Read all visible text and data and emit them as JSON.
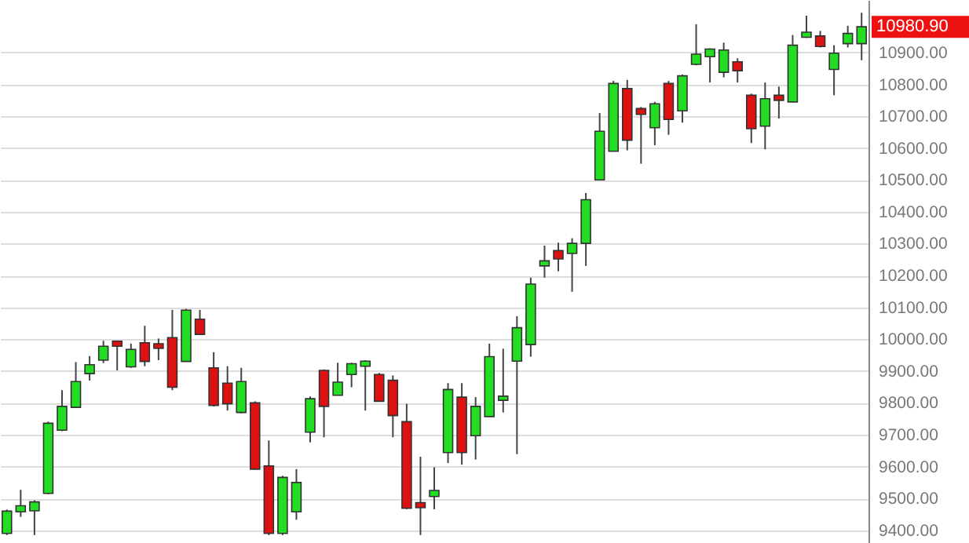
{
  "chart_data": {
    "type": "candlestick",
    "categories": [
      null,
      null,
      null,
      null,
      null,
      null,
      null,
      null,
      null,
      null,
      null,
      null,
      null,
      null,
      null,
      null,
      null,
      null,
      null,
      null,
      null,
      null,
      null,
      null,
      null,
      null,
      null,
      null,
      null,
      null,
      null,
      null,
      null,
      null,
      null,
      null,
      null,
      null,
      null,
      null,
      null,
      null,
      null,
      null,
      null,
      null,
      null,
      null,
      null,
      null,
      null,
      null,
      null,
      null,
      null,
      null,
      null,
      null,
      null,
      null,
      null,
      null,
      null
    ],
    "ohlc": [
      [
        9390,
        9465,
        9385,
        9460
      ],
      [
        9458,
        9527,
        9442,
        9477
      ],
      [
        9461,
        9494,
        9385,
        9489
      ],
      [
        9516,
        9741,
        9513,
        9736
      ],
      [
        9714,
        9840,
        9711,
        9789
      ],
      [
        9786,
        9928,
        9786,
        9867
      ],
      [
        9892,
        9947,
        9870,
        9920
      ],
      [
        9934,
        9995,
        9925,
        9978
      ],
      [
        9994,
        9996,
        9902,
        9978
      ],
      [
        9913,
        9986,
        9910,
        9968
      ],
      [
        9989,
        10042,
        9915,
        9930
      ],
      [
        9986,
        10002,
        9934,
        9971
      ],
      [
        10005,
        10092,
        9840,
        9849
      ],
      [
        9930,
        10095,
        9930,
        10091
      ],
      [
        10063,
        10092,
        10015,
        10015
      ],
      [
        9910,
        9959,
        9789,
        9792
      ],
      [
        9862,
        9915,
        9776,
        9797
      ],
      [
        9770,
        9910,
        9767,
        9867
      ],
      [
        9800,
        9805,
        9590,
        9592
      ],
      [
        9602,
        9682,
        9385,
        9390
      ],
      [
        9390,
        9571,
        9385,
        9566
      ],
      [
        9458,
        9592,
        9433,
        9550
      ],
      [
        9708,
        9820,
        9676,
        9813
      ],
      [
        9902,
        9905,
        9692,
        9789
      ],
      [
        9824,
        9926,
        9824,
        9865
      ],
      [
        9889,
        9926,
        9849,
        9923
      ],
      [
        9915,
        9934,
        9776,
        9931
      ],
      [
        9889,
        9894,
        9805,
        9805
      ],
      [
        9871,
        9886,
        9692,
        9760
      ],
      [
        9741,
        9797,
        9466,
        9469
      ],
      [
        9487,
        9631,
        9385,
        9471
      ],
      [
        9506,
        9598,
        9466,
        9525
      ],
      [
        9644,
        9862,
        9611,
        9842
      ],
      [
        9818,
        9862,
        9606,
        9644
      ],
      [
        9697,
        9818,
        9622,
        9789
      ],
      [
        9757,
        9986,
        9757,
        9945
      ],
      [
        9808,
        9970,
        9770,
        9821
      ],
      [
        9931,
        10072,
        9639,
        10036
      ],
      [
        9983,
        10193,
        9945,
        10173
      ],
      [
        10230,
        10294,
        10193,
        10246
      ],
      [
        10278,
        10303,
        10213,
        10252
      ],
      [
        10269,
        10317,
        10149,
        10301
      ],
      [
        10301,
        10459,
        10230,
        10438
      ],
      [
        10500,
        10710,
        10500,
        10653
      ],
      [
        10590,
        10811,
        10590,
        10803
      ],
      [
        10787,
        10814,
        10593,
        10625
      ],
      [
        10724,
        10729,
        10551,
        10706
      ],
      [
        10664,
        10745,
        10609,
        10739
      ],
      [
        10803,
        10811,
        10642,
        10690
      ],
      [
        10717,
        10831,
        10680,
        10827
      ],
      [
        10863,
        10989,
        10860,
        10895
      ],
      [
        10887,
        10913,
        10806,
        10911
      ],
      [
        10838,
        10931,
        10822,
        10908
      ],
      [
        10871,
        10882,
        10806,
        10843
      ],
      [
        10766,
        10771,
        10616,
        10661
      ],
      [
        10669,
        10806,
        10596,
        10755
      ],
      [
        10766,
        10793,
        10693,
        10750
      ],
      [
        10745,
        10955,
        10745,
        10923
      ],
      [
        10948,
        11016,
        10946,
        10964
      ],
      [
        10952,
        10968,
        10916,
        10919
      ],
      [
        10847,
        10923,
        10766,
        10898
      ],
      [
        10928,
        10984,
        10916,
        10960
      ],
      [
        10928,
        11025,
        10876,
        10980.9
      ]
    ],
    "colors": [
      "#22dd22",
      "#22dd22",
      "#22dd22",
      "#22dd22",
      "#22dd22",
      "#22dd22",
      "#22dd22",
      "#22dd22",
      "#dd1111",
      "#22dd22",
      "#dd1111",
      "#dd1111",
      "#dd1111",
      "#22dd22",
      "#dd1111",
      "#dd1111",
      "#dd1111",
      "#22dd22",
      "#dd1111",
      "#dd1111",
      "#22dd22",
      "#22dd22",
      "#22dd22",
      "#dd1111",
      "#22dd22",
      "#22dd22",
      "#22dd22",
      "#dd1111",
      "#dd1111",
      "#dd1111",
      "#dd1111",
      "#22dd22",
      "#22dd22",
      "#dd1111",
      "#22dd22",
      "#22dd22",
      "#22dd22",
      "#22dd22",
      "#22dd22",
      "#22dd22",
      "#dd1111",
      "#22dd22",
      "#22dd22",
      "#22dd22",
      "#22dd22",
      "#dd1111",
      "#dd1111",
      "#22dd22",
      "#dd1111",
      "#22dd22",
      "#22dd22",
      "#22dd22",
      "#22dd22",
      "#dd1111",
      "#dd1111",
      "#22dd22",
      "#dd1111",
      "#22dd22",
      "#22dd22",
      "#dd1111",
      "#22dd22",
      "#22dd22",
      "#22dd22"
    ],
    "ylim": [
      9360,
      11065
    ],
    "yticks": [
      {
        "value": 9400,
        "label": "9400.00"
      },
      {
        "value": 9500,
        "label": "9500.00"
      },
      {
        "value": 9600,
        "label": "9600.00"
      },
      {
        "value": 9700,
        "label": "9700.00"
      },
      {
        "value": 9800,
        "label": "9800.00"
      },
      {
        "value": 9900,
        "label": "9900.00"
      },
      {
        "value": 10000,
        "label": "10000.00"
      },
      {
        "value": 10100,
        "label": "10100.00"
      },
      {
        "value": 10200,
        "label": "10200.00"
      },
      {
        "value": 10300,
        "label": "10300.00"
      },
      {
        "value": 10400,
        "label": "10400.00"
      },
      {
        "value": 10500,
        "label": "10500.00"
      },
      {
        "value": 10600,
        "label": "10600.00"
      },
      {
        "value": 10700,
        "label": "10700.00"
      },
      {
        "value": 10800,
        "label": "10800.00"
      },
      {
        "value": 10900,
        "label": "10900.00"
      }
    ],
    "grid": "y",
    "tick_labels": "y",
    "annotations": [
      "10980.90"
    ]
  }
}
